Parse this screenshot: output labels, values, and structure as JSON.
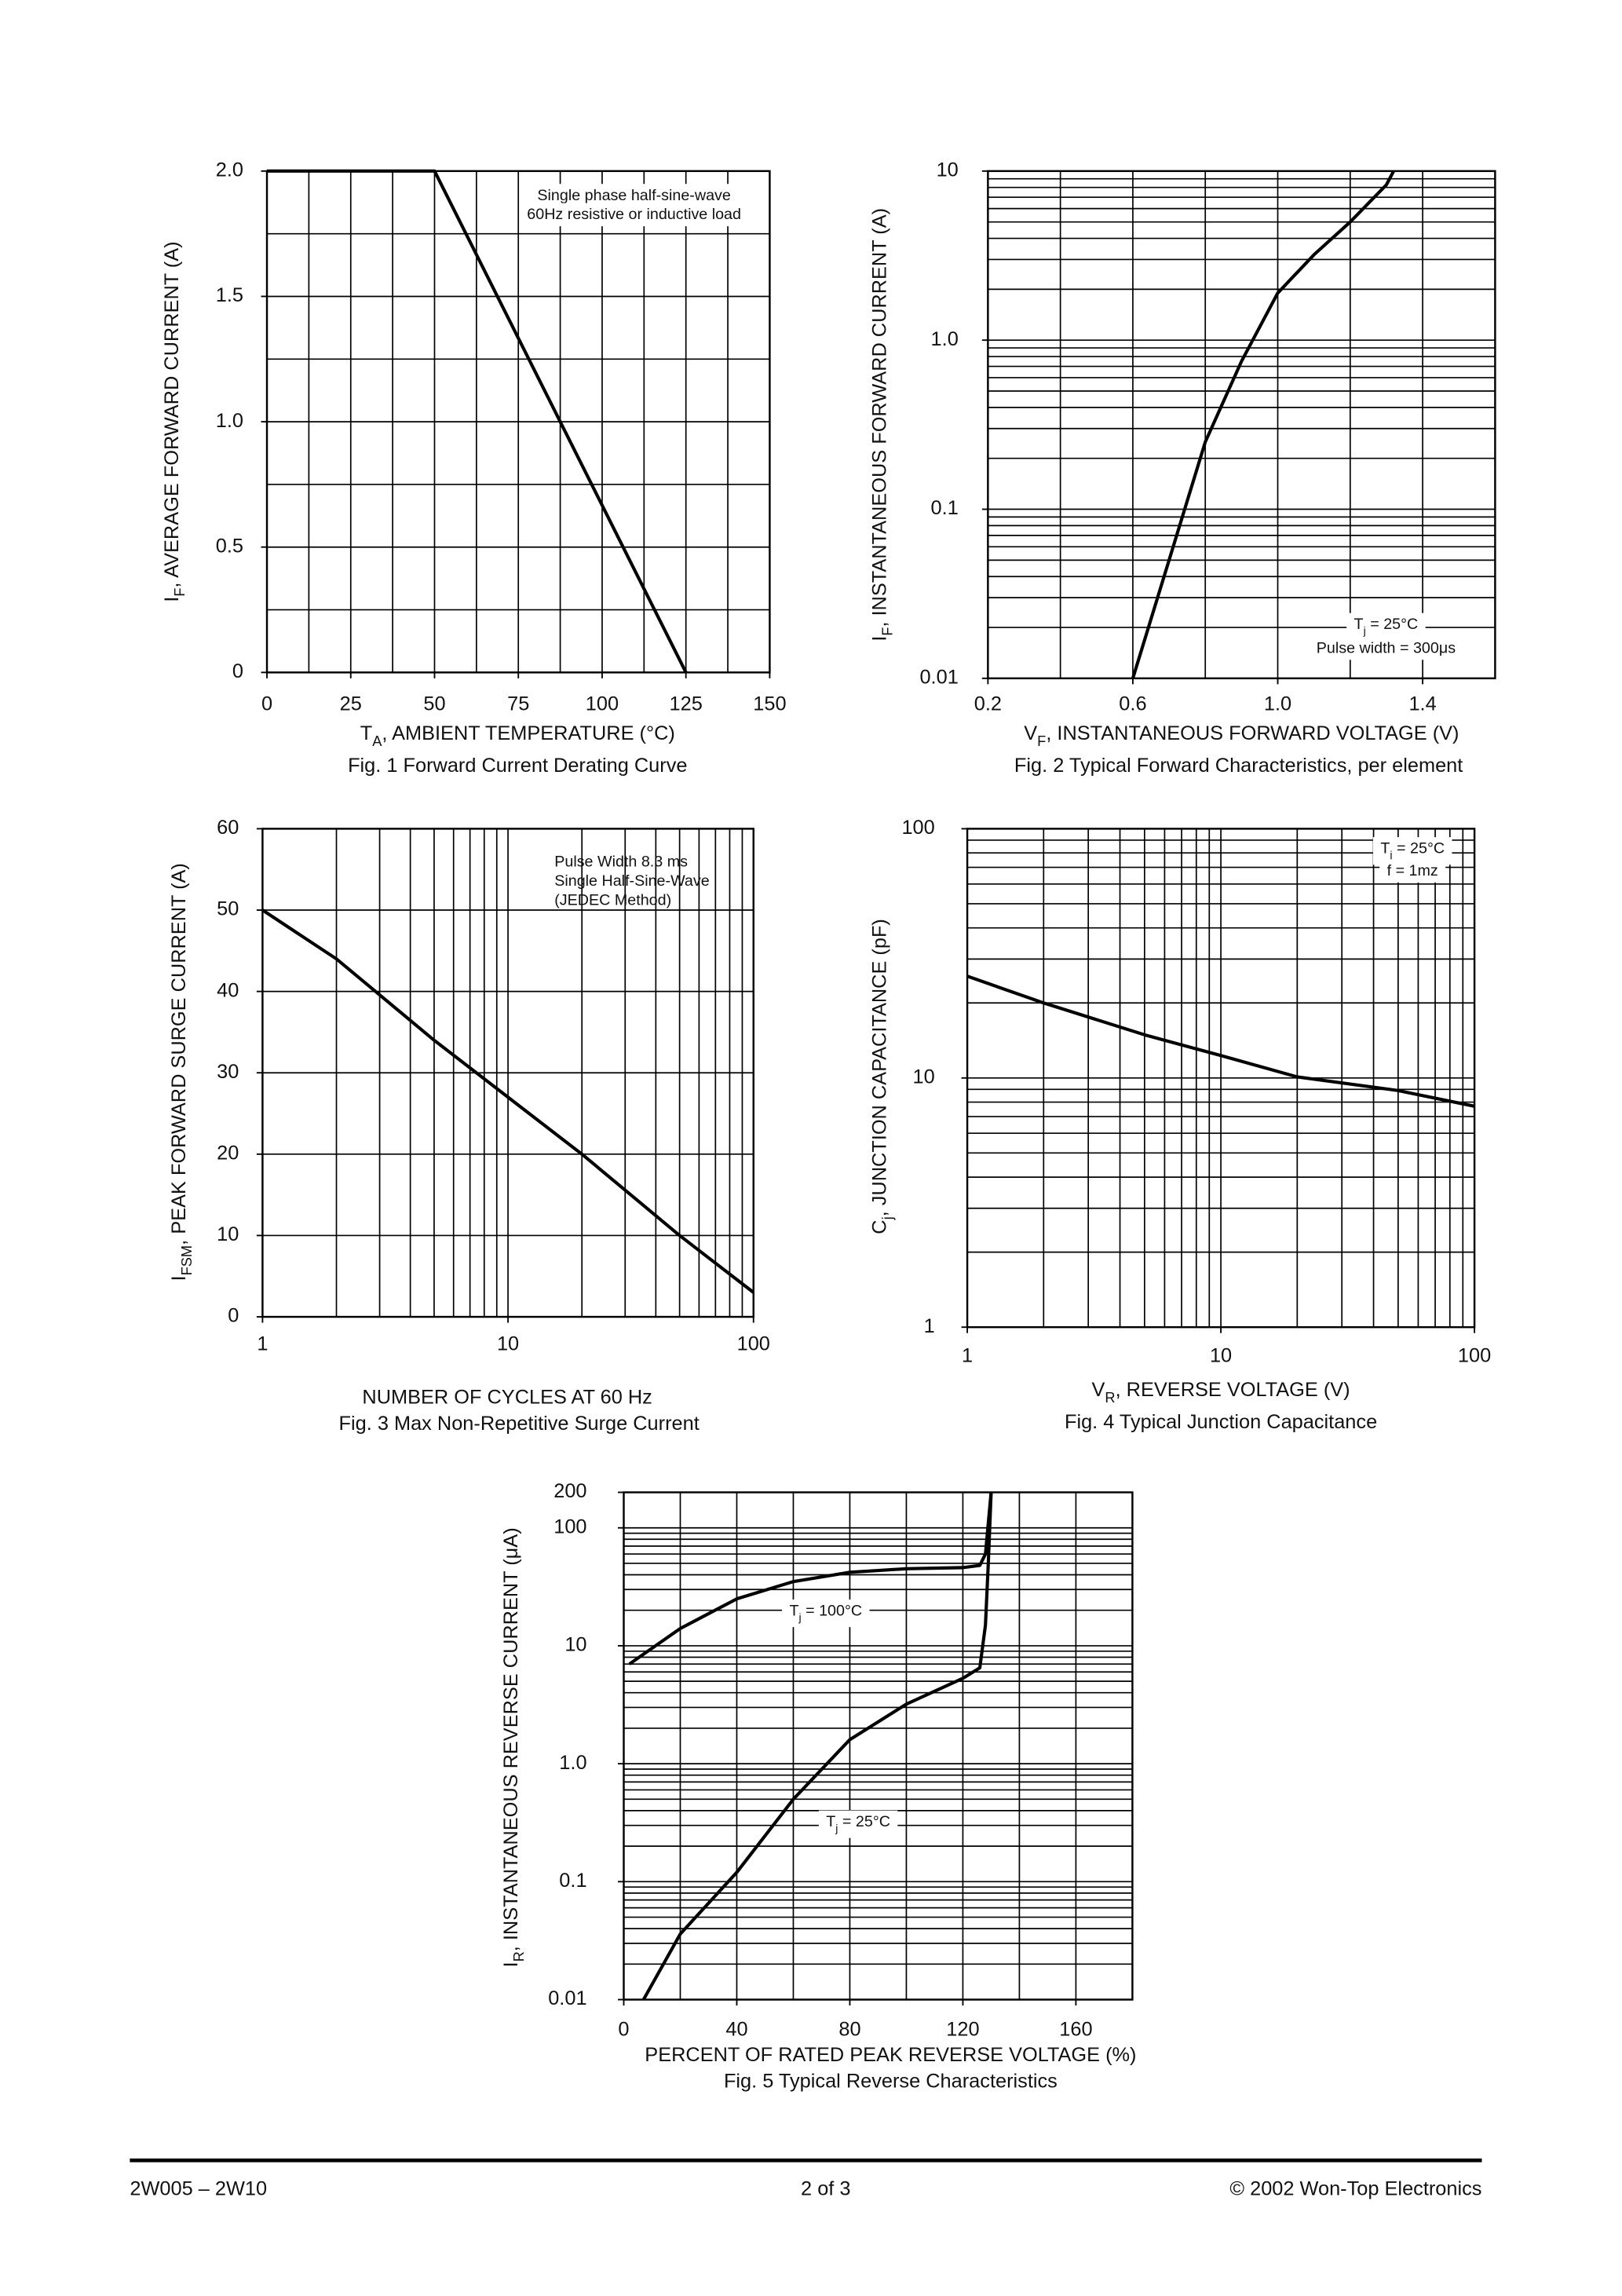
{
  "chart_data": [
    {
      "type": "line",
      "title": "Fig. 1  Forward Current Derating Curve",
      "xlabel": [
        "T",
        "A",
        ", AMBIENT TEMPERATURE (°C)"
      ],
      "ylabel": [
        "I",
        "F",
        ", AVERAGE FORWARD CURRENT (A)"
      ],
      "annotations": [
        [
          "Single phase half-sine-wave"
        ],
        [
          "60Hz resistive or inductive load"
        ]
      ],
      "x": [
        0,
        50,
        125
      ],
      "values": [
        2,
        2,
        0
      ],
      "color": "#000000",
      "xlim": [
        0,
        150
      ],
      "ylim": [
        0,
        2
      ],
      "xticks": [
        0,
        25,
        50,
        75,
        100,
        125,
        150
      ],
      "yticks": [
        0,
        0.5,
        {
          "value": 1,
          "label": "1.0"
        },
        1.5,
        {
          "value": 2,
          "label": "2.0"
        }
      ],
      "xgrid": [
        0,
        12.5,
        25,
        37.5,
        50,
        62.5,
        75,
        87.5,
        100,
        112.5,
        125,
        137.5,
        150
      ],
      "ygrid": [
        0,
        0.25,
        0.5,
        0.75,
        1,
        1.25,
        1.5,
        1.75,
        2
      ]
    },
    {
      "type": "line",
      "title": "Fig. 2  Typical Forward Characteristics, per element",
      "xlabel": [
        "V",
        "F",
        ", INSTANTANEOUS FORWARD VOLTAGE (V)"
      ],
      "ylabel": [
        "I",
        "F",
        ", INSTANTANEOUS FORWARD CURRENT (A)"
      ],
      "annotations": [
        [
          "T",
          "j",
          " = 25°C"
        ],
        [
          "Pulse width = 300μs"
        ]
      ],
      "x": [
        0.6,
        0.7,
        0.8,
        0.9,
        1.0,
        1.1,
        1.2,
        1.3,
        1.32
      ],
      "values": [
        0.01,
        0.05,
        0.25,
        0.75,
        1.9,
        3.2,
        5,
        8.3,
        10
      ],
      "color": "#000000",
      "xlim": [
        0.2,
        1.6
      ],
      "ylim": [
        0.01,
        10
      ],
      "yscale": "log",
      "xticks": [
        0.2,
        0.6,
        {
          "value": 1,
          "label": "1.0"
        },
        1.4
      ],
      "yticks": [
        0.01,
        0.1,
        {
          "value": 1,
          "label": "1.0"
        },
        10
      ],
      "xgrid": [
        0.2,
        0.4,
        0.6,
        0.8,
        1.0,
        1.2,
        1.4,
        1.6
      ],
      "ygrid": [
        0.01,
        0.02,
        0.03,
        0.04,
        0.05,
        0.06,
        0.07,
        0.08,
        0.09,
        0.1,
        0.2,
        0.3,
        0.4,
        0.5,
        0.6,
        0.7,
        0.8,
        0.9,
        1,
        2,
        3,
        4,
        5,
        6,
        7,
        8,
        9,
        10
      ]
    },
    {
      "type": "line",
      "title": "Fig. 3  Max Non-Repetitive Surge Current",
      "xlabel": [
        "NUMBER OF CYCLES AT 60 Hz"
      ],
      "ylabel": [
        "I",
        "FSM",
        ", PEAK FORWARD SURGE CURRENT (A)"
      ],
      "annotations": [
        [
          "Pulse Width 8.3 ms"
        ],
        [
          "Single Half-Sine-Wave"
        ],
        [
          "(JEDEC Method)"
        ]
      ],
      "x": [
        1,
        2,
        5,
        10,
        20,
        50,
        100
      ],
      "values": [
        50,
        44,
        34,
        27,
        20,
        10,
        3
      ],
      "color": "#000000",
      "xlim": [
        1,
        100
      ],
      "ylim": [
        0,
        60
      ],
      "xscale": "log",
      "xticks": [
        1,
        10,
        100
      ],
      "yticks": [
        0,
        10,
        20,
        30,
        40,
        50,
        60
      ],
      "xgrid": [
        1,
        2,
        3,
        4,
        5,
        6,
        7,
        8,
        9,
        10,
        20,
        30,
        40,
        50,
        60,
        70,
        80,
        90,
        100
      ],
      "ygrid": [
        0,
        10,
        20,
        30,
        40,
        50,
        60
      ]
    },
    {
      "type": "line",
      "title": "Fig. 4  Typical Junction Capacitance",
      "xlabel": [
        "V",
        "R",
        ", REVERSE VOLTAGE (V)"
      ],
      "ylabel": [
        "C",
        "j",
        ", JUNCTION CAPACITANCE (pF)"
      ],
      "annotations": [
        [
          "T",
          "j",
          " = 25°C"
        ],
        [
          "f = 1mz"
        ]
      ],
      "x": [
        1,
        2,
        5,
        10,
        20,
        50,
        100
      ],
      "values": [
        25.6,
        20,
        14.9,
        12.3,
        10.1,
        8.9,
        7.7
      ],
      "color": "#000000",
      "xlim": [
        1,
        100
      ],
      "ylim": [
        1,
        100
      ],
      "xscale": "log",
      "yscale": "log",
      "xticks": [
        1,
        10,
        100
      ],
      "yticks": [
        1,
        10,
        100
      ],
      "xgrid": [
        1,
        2,
        3,
        4,
        5,
        6,
        7,
        8,
        9,
        10,
        20,
        30,
        40,
        50,
        60,
        70,
        80,
        90,
        100
      ],
      "ygrid": [
        1,
        2,
        3,
        4,
        5,
        6,
        7,
        8,
        9,
        10,
        20,
        30,
        40,
        50,
        60,
        70,
        80,
        90,
        100
      ]
    },
    {
      "type": "line",
      "title": "Fig. 5  Typical Reverse Characteristics",
      "xlabel": [
        "PERCENT OF RATED PEAK REVERSE VOLTAGE (%)"
      ],
      "ylabel": [
        "I",
        "R",
        ", INSTANTANEOUS REVERSE CURRENT (μA)"
      ],
      "annotations": [
        [
          "T",
          "j",
          " = 100°C"
        ],
        [
          "T",
          "j",
          " = 25°C"
        ]
      ],
      "series": [
        {
          "x": [
            2,
            20,
            40,
            60,
            80,
            100,
            120,
            126,
            128,
            130
          ],
          "values": [
            7,
            14,
            25,
            35,
            42,
            45,
            46,
            48,
            60,
            200
          ],
          "color": "#000000"
        },
        {
          "x": [
            7,
            20,
            40,
            60,
            80,
            100,
            120,
            126,
            128,
            129,
            130
          ],
          "values": [
            0.01,
            0.036,
            0.12,
            0.5,
            1.6,
            3.2,
            5.3,
            6.5,
            15,
            50,
            200
          ],
          "color": "#000000"
        }
      ],
      "xlim": [
        0,
        180
      ],
      "ylim": [
        0.01,
        200
      ],
      "yscale": "log",
      "xticks": [
        0,
        40,
        80,
        120,
        160
      ],
      "yticks": [
        0.01,
        0.1,
        {
          "value": 1,
          "label": "1.0"
        },
        10,
        100,
        200
      ],
      "xgrid": [
        0,
        20,
        40,
        60,
        80,
        100,
        120,
        140,
        160,
        180
      ],
      "ygrid": [
        0.01,
        0.02,
        0.03,
        0.04,
        0.05,
        0.06,
        0.07,
        0.08,
        0.09,
        0.1,
        0.2,
        0.3,
        0.4,
        0.5,
        0.6,
        0.7,
        0.8,
        0.9,
        1,
        2,
        3,
        4,
        5,
        6,
        7,
        8,
        9,
        10,
        20,
        30,
        40,
        50,
        60,
        70,
        80,
        90,
        100,
        200
      ]
    }
  ],
  "footer": {
    "left": "2W005 – 2W10",
    "center": "2 of 3",
    "right": "© 2002 Won-Top Electronics"
  }
}
